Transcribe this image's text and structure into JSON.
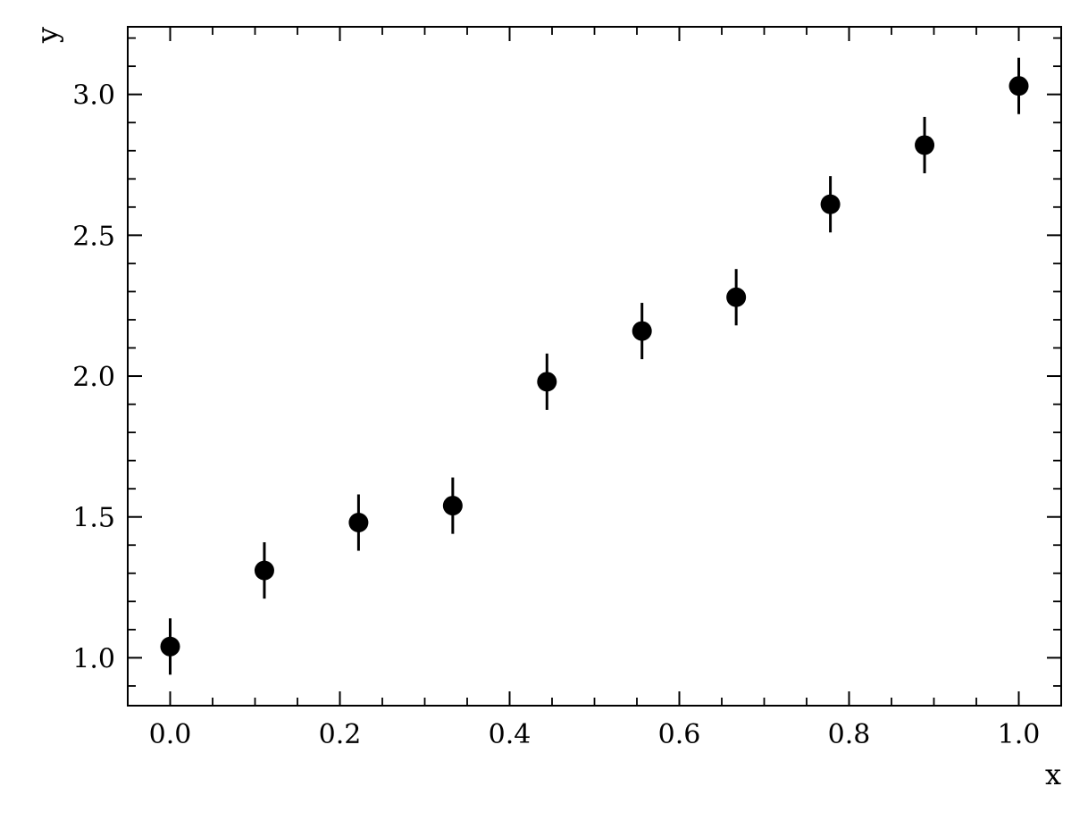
{
  "chart_data": {
    "type": "scatter",
    "title": "",
    "xlabel": "x",
    "ylabel": "y",
    "xlim": [
      -0.05,
      1.05
    ],
    "ylim": [
      0.83,
      3.24
    ],
    "x_ticks": [
      0.0,
      0.2,
      0.4,
      0.6,
      0.8,
      1.0
    ],
    "x_tick_labels": [
      "0.0",
      "0.2",
      "0.4",
      "0.6",
      "0.8",
      "1.0"
    ],
    "x_minor_step": 0.05,
    "y_ticks": [
      1.0,
      1.5,
      2.0,
      2.5,
      3.0
    ],
    "y_tick_labels": [
      "1.0",
      "1.5",
      "2.0",
      "2.5",
      "3.0"
    ],
    "y_minor_step": 0.1,
    "grid": false,
    "legend": "none",
    "marker_color": "#000000",
    "series": [
      {
        "x": [
          0.0,
          0.111,
          0.222,
          0.333,
          0.444,
          0.556,
          0.667,
          0.778,
          0.889,
          1.0
        ],
        "y": [
          1.04,
          1.31,
          1.48,
          1.54,
          1.98,
          2.16,
          2.28,
          2.61,
          2.82,
          3.03
        ],
        "yerr": [
          0.1,
          0.1,
          0.1,
          0.1,
          0.1,
          0.1,
          0.1,
          0.1,
          0.1,
          0.1
        ]
      }
    ]
  }
}
